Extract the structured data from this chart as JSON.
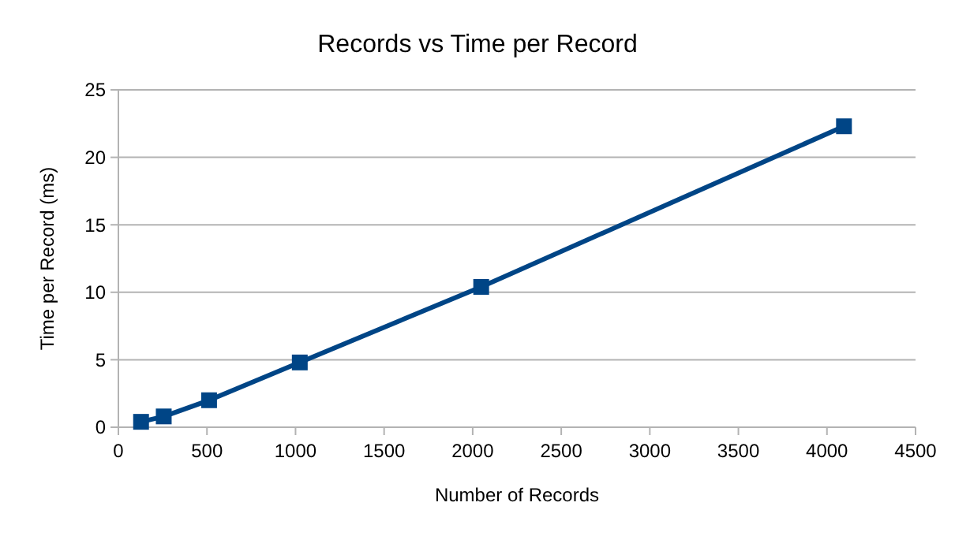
{
  "chart_data": {
    "type": "line",
    "title": "Records vs Time per Record",
    "xlabel": "Number of Records",
    "ylabel": "Time per Record (ms)",
    "x": [
      128,
      256,
      512,
      1024,
      2048,
      4096
    ],
    "series": [
      {
        "color": "#004586",
        "values": [
          0.4,
          0.8,
          2.0,
          4.8,
          10.4,
          22.3
        ]
      }
    ],
    "xlim": [
      0,
      4500
    ],
    "xticks": [
      0,
      500,
      1000,
      1500,
      2000,
      2500,
      3000,
      3500,
      4000,
      4500
    ],
    "ylim": [
      0,
      25
    ],
    "yticks": [
      0,
      5,
      10,
      15,
      20,
      25
    ],
    "grid": "y",
    "marker": "square",
    "line_style": "solid"
  }
}
